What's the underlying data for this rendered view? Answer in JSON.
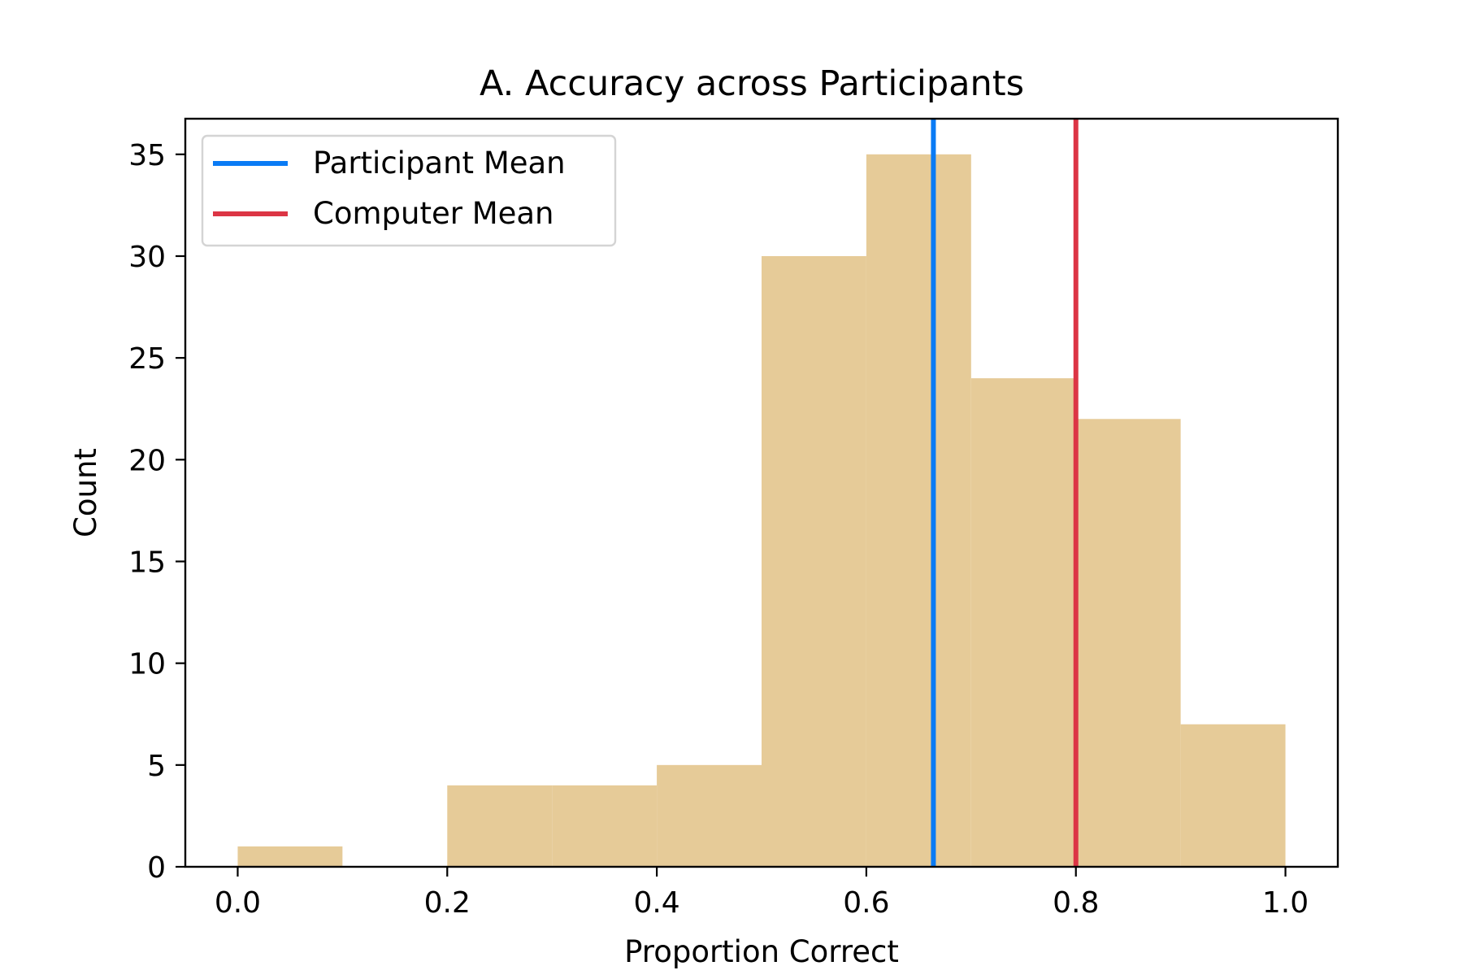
{
  "chart_data": {
    "type": "histogram",
    "title": "A. Accuracy across Participants",
    "xlabel": "Proportion Correct",
    "ylabel": "Count",
    "xlim": [
      -0.05,
      1.05
    ],
    "ylim": [
      0,
      36.75
    ],
    "xticks": [
      0.0,
      0.2,
      0.4,
      0.6,
      0.8,
      1.0
    ],
    "xtick_labels": [
      "0.0",
      "0.2",
      "0.4",
      "0.6",
      "0.8",
      "1.0"
    ],
    "yticks": [
      0,
      5,
      10,
      15,
      20,
      25,
      30,
      35
    ],
    "ytick_labels": [
      "0",
      "5",
      "10",
      "15",
      "20",
      "25",
      "30",
      "35"
    ],
    "bin_edges": [
      0.0,
      0.1,
      0.2,
      0.3,
      0.4,
      0.5,
      0.6,
      0.7,
      0.8,
      0.9,
      1.0
    ],
    "counts": [
      1,
      0,
      4,
      4,
      5,
      30,
      35,
      24,
      22,
      7
    ],
    "bar_color": "#e6cb98",
    "grid": false,
    "legend_position": "upper-left",
    "vlines": [
      {
        "name": "Participant Mean",
        "x": 0.664,
        "color": "#0a7bf5"
      },
      {
        "name": "Computer Mean",
        "x": 0.8,
        "color": "#dc3545"
      }
    ]
  }
}
